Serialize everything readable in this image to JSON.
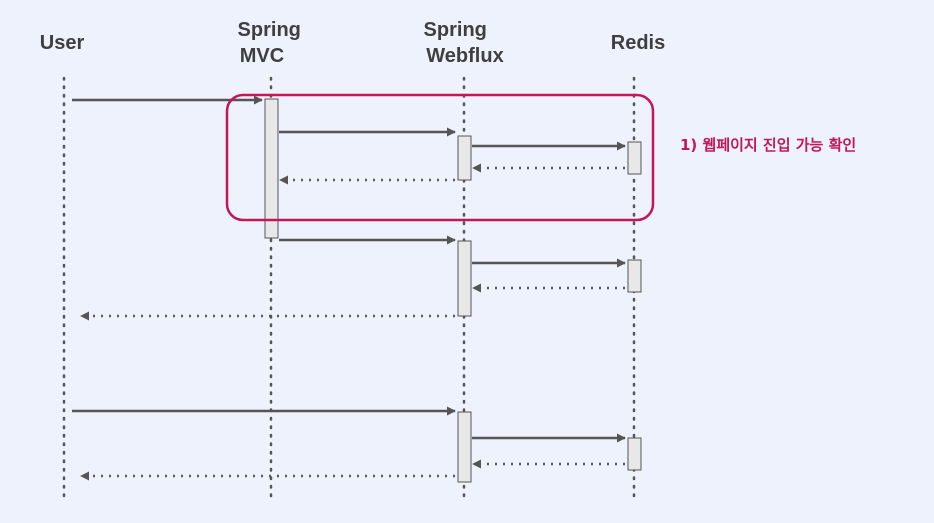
{
  "colors": {
    "background": "#eef2fd",
    "text": "#3f3f3f",
    "line": "#555555",
    "activation_fill": "#e8e8e8",
    "activation_stroke": "#555555",
    "highlight": "#c2185b"
  },
  "participants": [
    {
      "id": "user",
      "lines": [
        "User"
      ]
    },
    {
      "id": "mvc",
      "lines": [
        "Spring",
        "MVC"
      ]
    },
    {
      "id": "webflux",
      "lines": [
        "Spring",
        "Webflux"
      ]
    },
    {
      "id": "redis",
      "lines": [
        "Redis"
      ]
    }
  ],
  "messages": [
    {
      "from": "user",
      "to": "mvc",
      "kind": "request"
    },
    {
      "from": "mvc",
      "to": "webflux",
      "kind": "request"
    },
    {
      "from": "webflux",
      "to": "redis",
      "kind": "request"
    },
    {
      "from": "redis",
      "to": "webflux",
      "kind": "response"
    },
    {
      "from": "webflux",
      "to": "mvc",
      "kind": "response"
    },
    {
      "from": "mvc",
      "to": "webflux",
      "kind": "request"
    },
    {
      "from": "webflux",
      "to": "redis",
      "kind": "request"
    },
    {
      "from": "redis",
      "to": "webflux",
      "kind": "response"
    },
    {
      "from": "webflux",
      "to": "user",
      "kind": "response"
    },
    {
      "from": "user",
      "to": "webflux",
      "kind": "request"
    },
    {
      "from": "webflux",
      "to": "redis",
      "kind": "request"
    },
    {
      "from": "redis",
      "to": "webflux",
      "kind": "response"
    },
    {
      "from": "webflux",
      "to": "user",
      "kind": "response"
    }
  ],
  "highlight": {
    "label": "1) 웹페이지 진입 가능 확인"
  }
}
